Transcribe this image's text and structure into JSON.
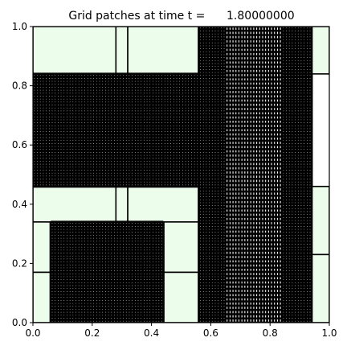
{
  "chart_data": {
    "type": "other",
    "title": "Grid patches at time t =      1.80000000",
    "xlabel": "",
    "ylabel": "",
    "xlim": [
      0,
      1
    ],
    "ylim": [
      0,
      1
    ],
    "grid": false,
    "xticks": [
      "0.0",
      "0.2",
      "0.4",
      "0.6",
      "0.8",
      "1.0"
    ],
    "yticks": [
      "0.0",
      "0.2",
      "0.4",
      "0.6",
      "0.8",
      "1.0"
    ],
    "colors": {
      "patch_fill": "#ecfdec",
      "fine_grid": "#000000",
      "edge": "#000000",
      "background": "#ffffff"
    },
    "light_patches": [
      {
        "x0": 0.0,
        "x1": 0.28,
        "y0": 0.84,
        "y1": 1.0
      },
      {
        "x0": 0.28,
        "x1": 0.32,
        "y0": 0.84,
        "y1": 1.0
      },
      {
        "x0": 0.32,
        "x1": 0.56,
        "y0": 0.84,
        "y1": 1.0
      },
      {
        "x0": 0.0,
        "x1": 0.28,
        "y0": 0.34,
        "y1": 0.46
      },
      {
        "x0": 0.28,
        "x1": 0.32,
        "y0": 0.34,
        "y1": 0.46
      },
      {
        "x0": 0.32,
        "x1": 0.56,
        "y0": 0.34,
        "y1": 0.46
      },
      {
        "x0": 0.0,
        "x1": 0.06,
        "y0": 0.17,
        "y1": 0.34
      },
      {
        "x0": 0.0,
        "x1": 0.06,
        "y0": 0.0,
        "y1": 0.17
      },
      {
        "x0": 0.44,
        "x1": 0.56,
        "y0": 0.17,
        "y1": 0.34
      },
      {
        "x0": 0.44,
        "x1": 0.56,
        "y0": 0.0,
        "y1": 0.17
      },
      {
        "x0": 0.94,
        "x1": 1.0,
        "y0": 0.84,
        "y1": 1.0
      },
      {
        "x0": 0.94,
        "x1": 1.0,
        "y0": 0.23,
        "y1": 0.46
      },
      {
        "x0": 0.94,
        "x1": 1.0,
        "y0": 0.0,
        "y1": 0.23
      }
    ],
    "fine_patches": [
      {
        "x0": 0.0,
        "x1": 0.94,
        "y0": 0.46,
        "y1": 0.84,
        "nx": 94,
        "ny": 38
      },
      {
        "x0": 0.06,
        "x1": 0.44,
        "y0": 0.0,
        "y1": 0.34,
        "nx": 38,
        "ny": 34
      },
      {
        "x0": 0.56,
        "x1": 0.65,
        "y0": 0.0,
        "y1": 1.0,
        "nx": 9,
        "ny": 100
      },
      {
        "x0": 0.84,
        "x1": 0.94,
        "y0": 0.0,
        "y1": 1.0,
        "nx": 10,
        "ny": 100
      }
    ],
    "medium_patches": [
      {
        "x0": 0.65,
        "x1": 0.84,
        "y0": 0.0,
        "y1": 1.0,
        "nx": 19,
        "ny": 70
      }
    ]
  }
}
